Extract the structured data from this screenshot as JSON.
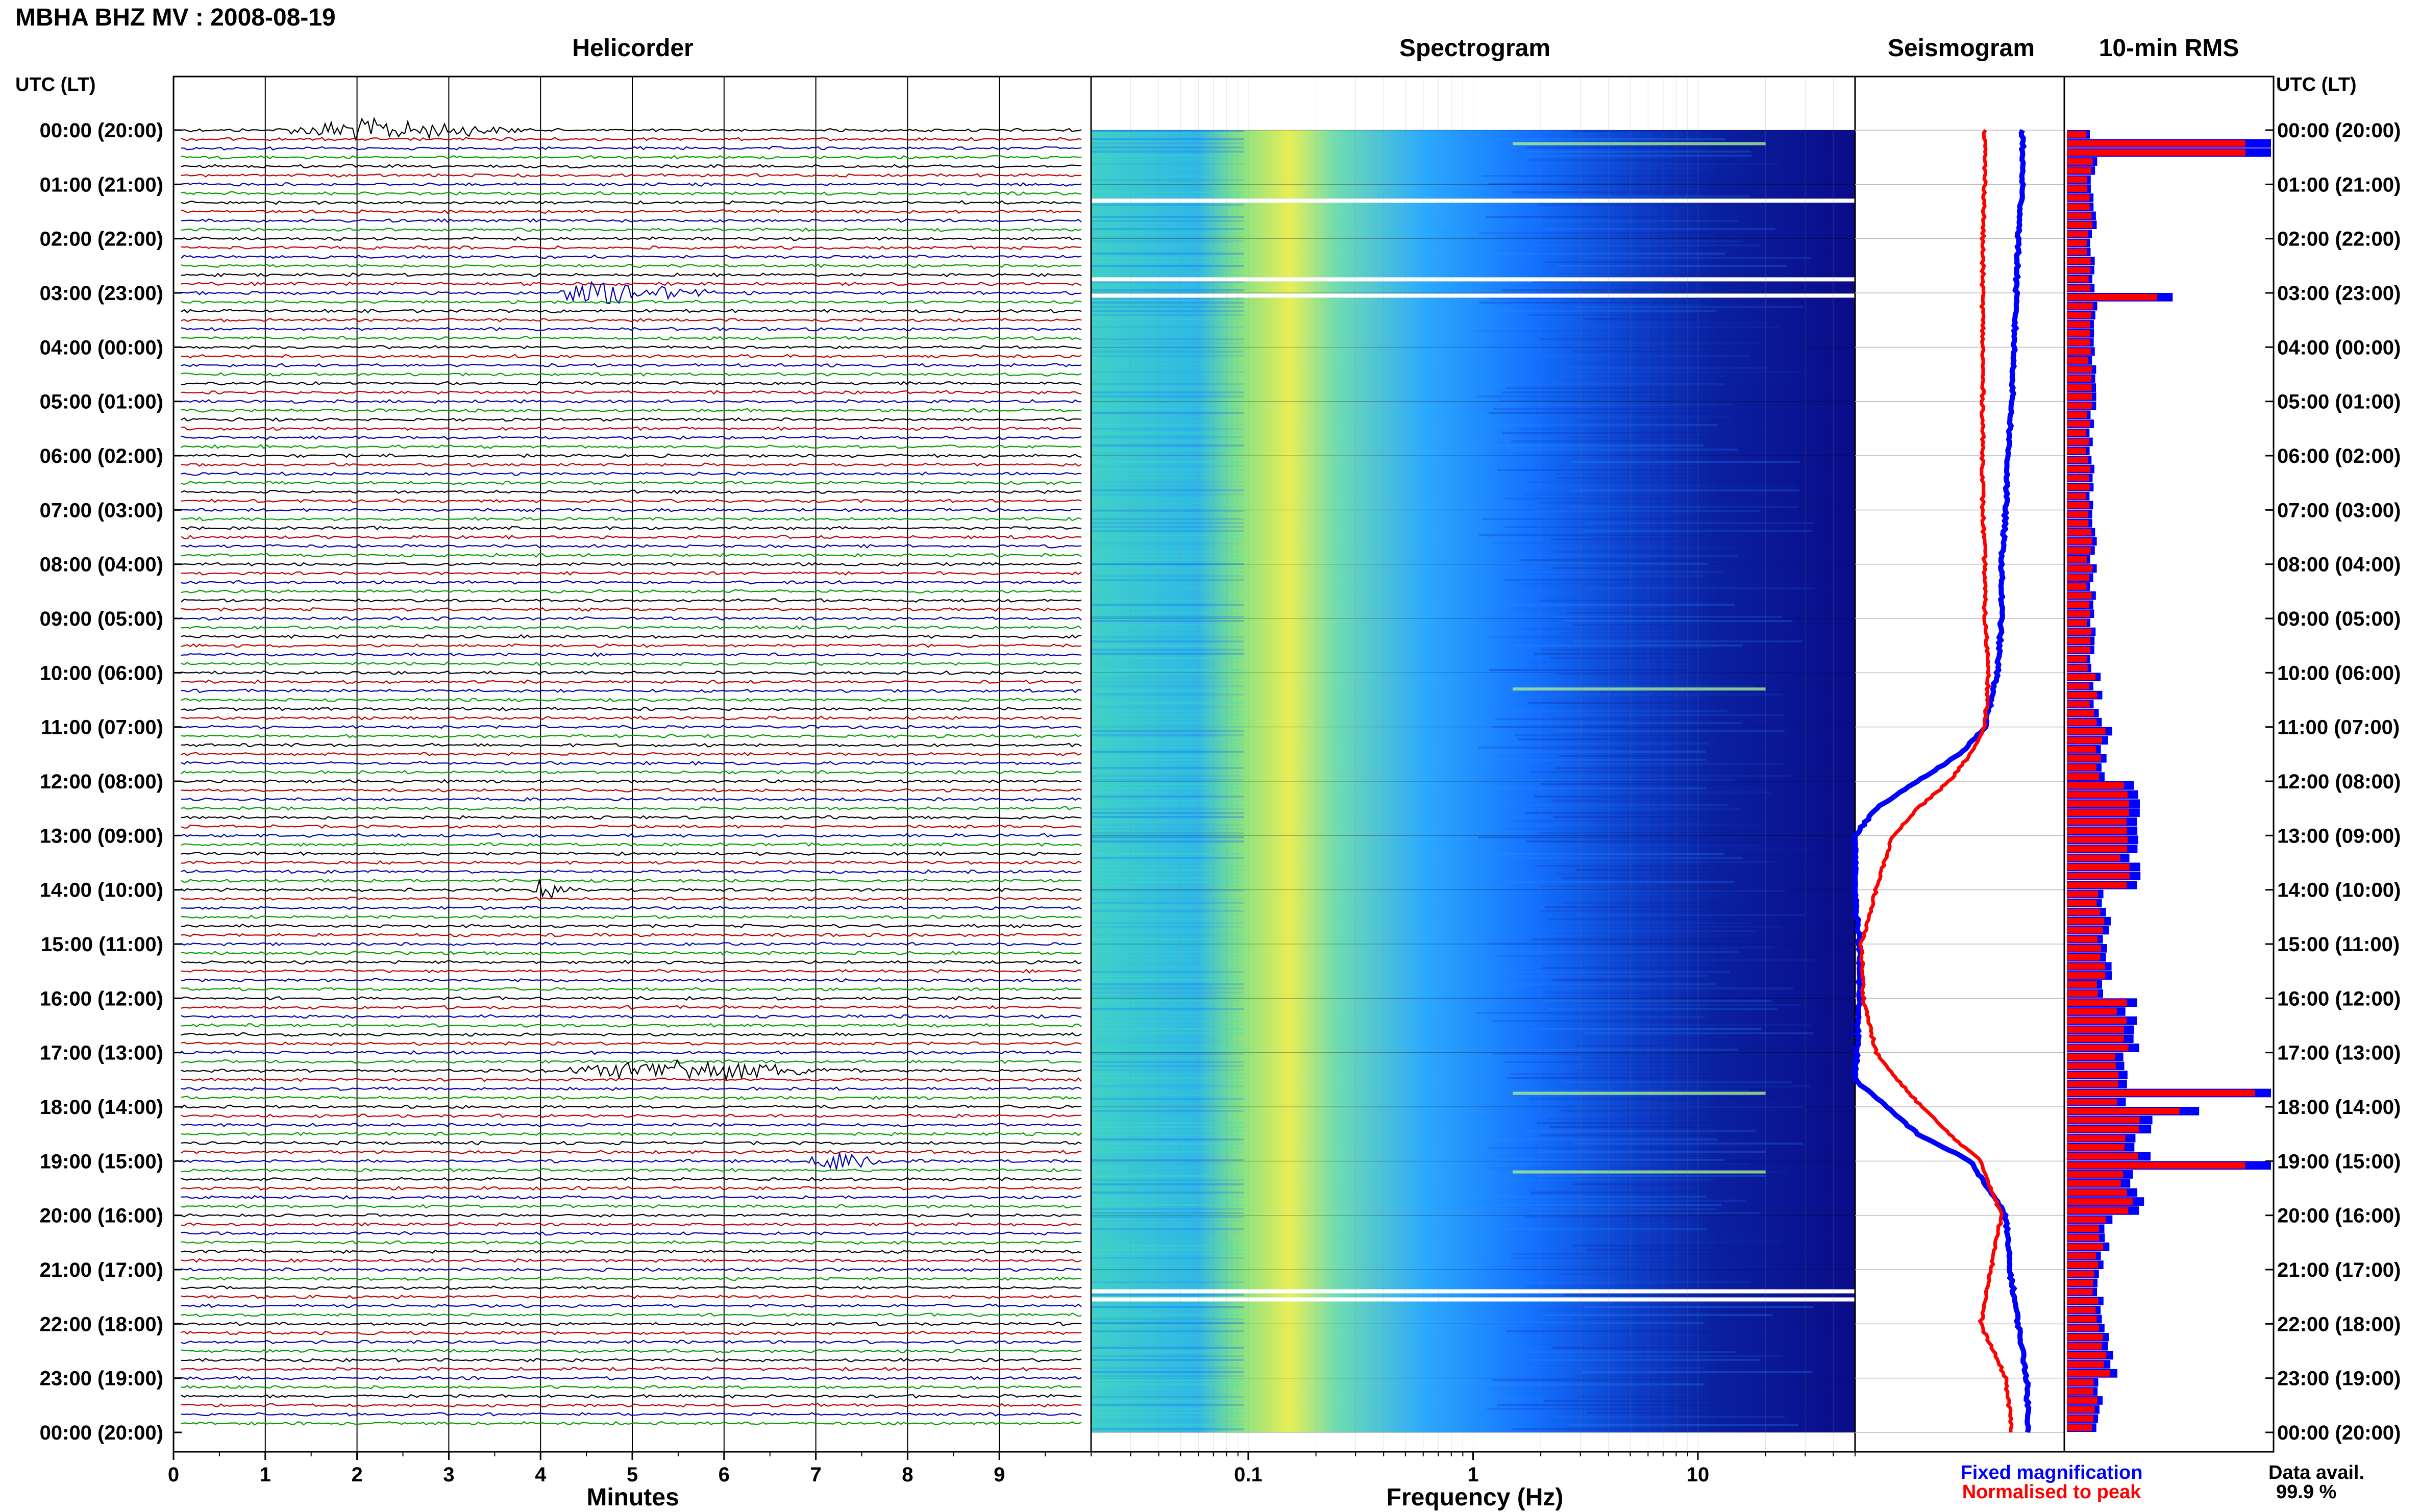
{
  "title": "MBHA BHZ MV : 2008-08-19",
  "panels": {
    "helicorder": "Helicorder",
    "spectrogram": "Spectrogram",
    "seismogram": "Seismogram",
    "rms": "10-min RMS"
  },
  "utc_label": "UTC (LT)",
  "time_labels": [
    "00:00 (20:00)",
    "01:00 (21:00)",
    "02:00 (22:00)",
    "03:00 (23:00)",
    "04:00 (00:00)",
    "05:00 (01:00)",
    "06:00 (02:00)",
    "07:00 (03:00)",
    "08:00 (04:00)",
    "09:00 (05:00)",
    "10:00 (06:00)",
    "11:00 (07:00)",
    "12:00 (08:00)",
    "13:00 (09:00)",
    "14:00 (10:00)",
    "15:00 (11:00)",
    "16:00 (12:00)",
    "17:00 (13:00)",
    "18:00 (14:00)",
    "19:00 (15:00)",
    "20:00 (16:00)",
    "21:00 (17:00)",
    "22:00 (18:00)",
    "23:00 (19:00)",
    "00:00 (20:00)"
  ],
  "legend": {
    "fixed": "Fixed magnification",
    "normalised": "Normalised to peak",
    "data_avail_label": "Data avail.",
    "data_avail_value": "99.9 %"
  },
  "colors": {
    "helicorder_traces": [
      "#000000",
      "#c00000",
      "#0000b0",
      "#00a000"
    ],
    "fixed": "#0000ff",
    "normalised": "#ff0000"
  },
  "chart_data": [
    {
      "type": "line",
      "name": "helicorder",
      "xlabel": "Minutes",
      "xlim": [
        0,
        10
      ],
      "xticks": [
        "0",
        "1",
        "2",
        "3",
        "4",
        "5",
        "6",
        "7",
        "8",
        "9"
      ],
      "events": [
        {
          "hour": 0,
          "start_min": 1.1,
          "end_min": 4.0,
          "peak_min": 2.0
        },
        {
          "hour": 3,
          "start_min": 4.0,
          "end_min": 6.0,
          "peak_min": 4.6
        },
        {
          "hour": 14,
          "start_min": 3.9,
          "end_min": 4.5,
          "peak_min": 4.0
        },
        {
          "hour": 17.3,
          "start_min": 4.0,
          "end_min": 7.5,
          "peak_min": 5.5
        },
        {
          "hour": 19,
          "start_min": 6.8,
          "end_min": 7.9,
          "peak_min": 7.3
        }
      ]
    },
    {
      "type": "heatmap",
      "name": "spectrogram",
      "xlabel": "Frequency (Hz)",
      "xscale": "log",
      "xlim": [
        0.02,
        50
      ],
      "xticks": [
        "0.1",
        "1",
        "10"
      ],
      "ylim": [
        0,
        24
      ],
      "gaps_hours": [
        1.3,
        2.75,
        3.05,
        21.4,
        21.55
      ],
      "bright_lines_hours": [
        0.25,
        10.3,
        17.75,
        19.2
      ]
    },
    {
      "type": "line",
      "name": "seismogram",
      "ylim": [
        0,
        24
      ],
      "hours": [
        0,
        1,
        2,
        3,
        4,
        5,
        6,
        7,
        8,
        9,
        10,
        11,
        11.5,
        12,
        12.5,
        13,
        14,
        15,
        16,
        17,
        17.5,
        18,
        18.5,
        19,
        20,
        21,
        22,
        23,
        24
      ],
      "fixed": [
        0.8,
        0.8,
        0.78,
        0.77,
        0.76,
        0.75,
        0.73,
        0.72,
        0.7,
        0.7,
        0.68,
        0.62,
        0.5,
        0.3,
        0.1,
        0.0,
        0.0,
        0.02,
        0.02,
        0.01,
        0.0,
        0.15,
        0.3,
        0.55,
        0.72,
        0.74,
        0.78,
        0.82,
        0.83
      ],
      "normalised": [
        0.62,
        0.62,
        0.61,
        0.61,
        0.61,
        0.61,
        0.61,
        0.61,
        0.62,
        0.62,
        0.64,
        0.62,
        0.55,
        0.45,
        0.3,
        0.18,
        0.1,
        0.03,
        0.04,
        0.1,
        0.2,
        0.32,
        0.45,
        0.6,
        0.7,
        0.65,
        0.6,
        0.72,
        0.75
      ]
    },
    {
      "type": "bar",
      "name": "10-min RMS",
      "ylim": [
        0,
        24
      ],
      "bins_per_hour": 6,
      "hourly_level": [
        0.12,
        0.12,
        0.12,
        0.12,
        0.12,
        0.12,
        0.12,
        0.12,
        0.12,
        0.12,
        0.14,
        0.18,
        0.35,
        0.3,
        0.18,
        0.18,
        0.3,
        0.25,
        0.35,
        0.32,
        0.18,
        0.15,
        0.2,
        0.15
      ],
      "spikes": [
        {
          "hour": 0.25,
          "level": 0.95
        },
        {
          "hour": 3.0,
          "level": 0.48
        },
        {
          "hour": 17.7,
          "level": 1.0
        },
        {
          "hour": 18.0,
          "level": 0.6
        },
        {
          "hour": 19.0,
          "level": 0.95
        }
      ]
    }
  ]
}
